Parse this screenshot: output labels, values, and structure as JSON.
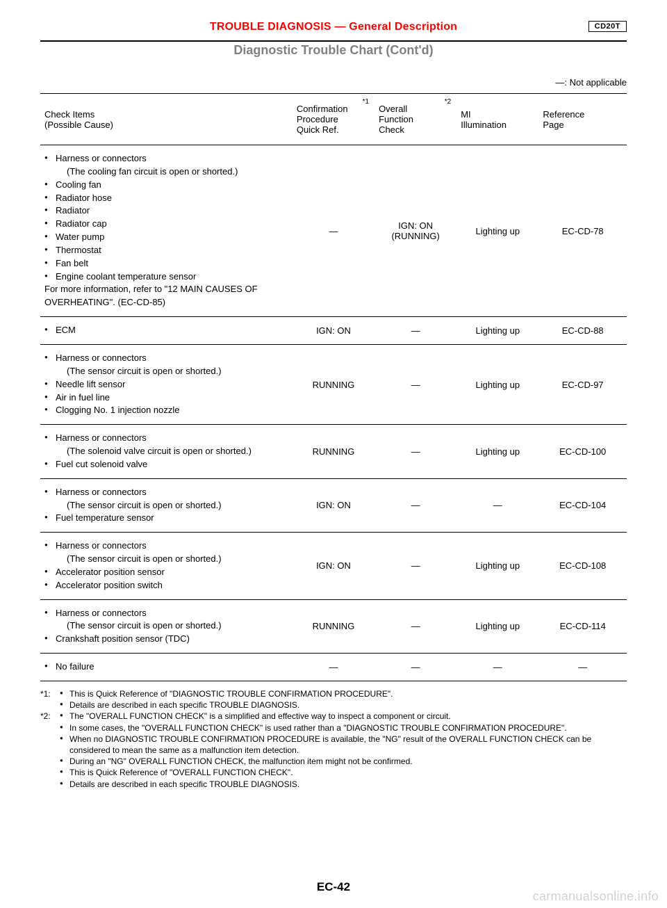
{
  "header": {
    "section_title": "TROUBLE DIAGNOSIS — General Description",
    "engine_box": "CD20T",
    "subtitle": "Diagnostic Trouble Chart (Cont'd)",
    "not_applicable": "—: Not applicable"
  },
  "columns": {
    "check": "Check Items\n(Possible Cause)",
    "conf_sup": "*1",
    "conf": "Confirmation\nProcedure\nQuick Ref.",
    "over_sup": "*2",
    "over": "Overall\nFunction\nCheck",
    "mi": "MI\nIllumination",
    "ref": "Reference\nPage"
  },
  "rows": [
    {
      "items": [
        {
          "t": "Harness or connectors",
          "s": "(The cooling fan circuit is open or shorted.)"
        },
        {
          "t": "Cooling fan"
        },
        {
          "t": "Radiator hose"
        },
        {
          "t": "Radiator"
        },
        {
          "t": "Radiator cap"
        },
        {
          "t": "Water pump"
        },
        {
          "t": "Thermostat"
        },
        {
          "t": "Fan belt"
        },
        {
          "t": "Engine coolant temperature sensor"
        }
      ],
      "extra": "For more information, refer to \"12 MAIN CAUSES OF OVERHEATING\". (EC-CD-85)",
      "conf": "—",
      "over": "IGN: ON\n(RUNNING)",
      "mi": "Lighting up",
      "ref": "EC-CD-78"
    },
    {
      "items": [
        {
          "t": "ECM"
        }
      ],
      "conf": "IGN: ON",
      "over": "—",
      "mi": "Lighting up",
      "ref": "EC-CD-88"
    },
    {
      "items": [
        {
          "t": "Harness or connectors",
          "s": "(The sensor circuit is open or shorted.)"
        },
        {
          "t": "Needle lift sensor"
        },
        {
          "t": "Air in fuel line"
        },
        {
          "t": "Clogging No. 1 injection nozzle"
        }
      ],
      "conf": "RUNNING",
      "over": "—",
      "mi": "Lighting up",
      "ref": "EC-CD-97"
    },
    {
      "items": [
        {
          "t": "Harness or connectors",
          "s": "(The solenoid valve circuit is open or shorted.)"
        },
        {
          "t": "Fuel cut solenoid valve"
        }
      ],
      "conf": "RUNNING",
      "over": "—",
      "mi": "Lighting up",
      "ref": "EC-CD-100"
    },
    {
      "items": [
        {
          "t": "Harness or connectors",
          "s": "(The sensor circuit is open or shorted.)"
        },
        {
          "t": "Fuel temperature sensor"
        }
      ],
      "conf": "IGN: ON",
      "over": "—",
      "mi": "—",
      "ref": "EC-CD-104"
    },
    {
      "items": [
        {
          "t": "Harness or connectors",
          "s": "(The sensor circuit is open or shorted.)"
        },
        {
          "t": "Accelerator position sensor"
        },
        {
          "t": "Accelerator position switch"
        }
      ],
      "conf": "IGN: ON",
      "over": "—",
      "mi": "Lighting up",
      "ref": "EC-CD-108"
    },
    {
      "items": [
        {
          "t": "Harness or connectors",
          "s": "(The sensor circuit is open or shorted.)"
        },
        {
          "t": "Crankshaft position sensor (TDC)"
        }
      ],
      "conf": "RUNNING",
      "over": "—",
      "mi": "Lighting up",
      "ref": "EC-CD-114"
    },
    {
      "items": [
        {
          "t": "No failure"
        }
      ],
      "conf": "—",
      "over": "—",
      "mi": "—",
      "ref": "—"
    }
  ],
  "footnotes": {
    "f1_label": "*1:",
    "f1_lines": [
      "This is Quick Reference of \"DIAGNOSTIC TROUBLE CONFIRMATION PROCEDURE\".",
      "Details are described in each specific TROUBLE DIAGNOSIS."
    ],
    "f2_label": "*2:",
    "f2_lines": [
      "The \"OVERALL FUNCTION CHECK\" is a simplified and effective way to inspect a component or circuit.",
      "In some cases, the \"OVERALL FUNCTION CHECK\" is used rather than a \"DIAGNOSTIC TROUBLE CONFIRMATION PROCEDURE\".",
      "When no DIAGNOSTIC TROUBLE CONFIRMATION PROCEDURE is available, the \"NG\" result of the OVERALL FUNCTION CHECK can be considered to mean the same as a malfunction item detection.",
      "During an \"NG\" OVERALL FUNCTION CHECK, the malfunction item might not be confirmed.",
      "This is Quick Reference of \"OVERALL FUNCTION CHECK\".",
      "Details are described in each specific TROUBLE DIAGNOSIS."
    ]
  },
  "page_num": "EC-42",
  "watermark": "carmanualsonline.info"
}
